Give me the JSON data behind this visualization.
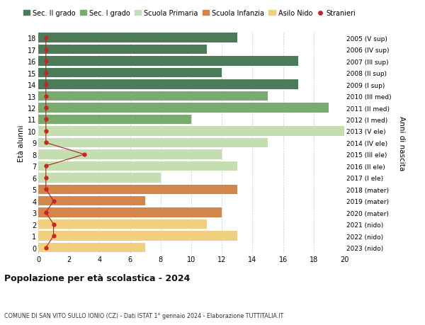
{
  "ages": [
    18,
    17,
    16,
    15,
    14,
    13,
    12,
    11,
    10,
    9,
    8,
    7,
    6,
    5,
    4,
    3,
    2,
    1,
    0
  ],
  "years": [
    "2005 (V sup)",
    "2006 (IV sup)",
    "2007 (III sup)",
    "2008 (II sup)",
    "2009 (I sup)",
    "2010 (III med)",
    "2011 (II med)",
    "2012 (I med)",
    "2013 (V ele)",
    "2014 (IV ele)",
    "2015 (III ele)",
    "2016 (II ele)",
    "2017 (I ele)",
    "2018 (mater)",
    "2019 (mater)",
    "2020 (mater)",
    "2021 (nido)",
    "2022 (nido)",
    "2023 (nido)"
  ],
  "bar_values": [
    13,
    11,
    17,
    12,
    17,
    15,
    19,
    10,
    21,
    15,
    12,
    13,
    8,
    13,
    7,
    12,
    11,
    13,
    7
  ],
  "bar_colors": [
    "#4a7c59",
    "#4a7c59",
    "#4a7c59",
    "#4a7c59",
    "#4a7c59",
    "#7aab6e",
    "#7aab6e",
    "#7aab6e",
    "#c5deb0",
    "#c5deb0",
    "#c5deb0",
    "#c5deb0",
    "#c5deb0",
    "#d4854a",
    "#d4854a",
    "#d4854a",
    "#f0d080",
    "#f0d080",
    "#f0d080"
  ],
  "stranieri_x": [
    0.5,
    0.5,
    0.5,
    0.5,
    0.5,
    0.5,
    0.5,
    0.5,
    0.5,
    0.5,
    3,
    0.5,
    0.5,
    0.5,
    1,
    0.5,
    1,
    1,
    0.5
  ],
  "legend_labels": [
    "Sec. II grado",
    "Sec. I grado",
    "Scuola Primaria",
    "Scuola Infanzia",
    "Asilo Nido",
    "Stranieri"
  ],
  "legend_colors": [
    "#4a7c59",
    "#7aab6e",
    "#c5deb0",
    "#d4854a",
    "#f0d080",
    "#cc2222"
  ],
  "title": "Popolazione per età scolastica - 2024",
  "subtitle": "COMUNE DI SAN VITO SULLO IONIO (CZ) - Dati ISTAT 1° gennaio 2024 - Elaborazione TUTTITALIA.IT",
  "ylabel_left": "Età alunni",
  "ylabel_right": "Anni di nascita",
  "xlim": [
    0,
    20
  ],
  "xticks": [
    0,
    2,
    4,
    6,
    8,
    10,
    12,
    14,
    16,
    18,
    20
  ],
  "bg_color": "#ffffff",
  "grid_color": "#cccccc",
  "stranieri_line_color": "#aa2222",
  "stranieri_dot_color": "#cc2222"
}
